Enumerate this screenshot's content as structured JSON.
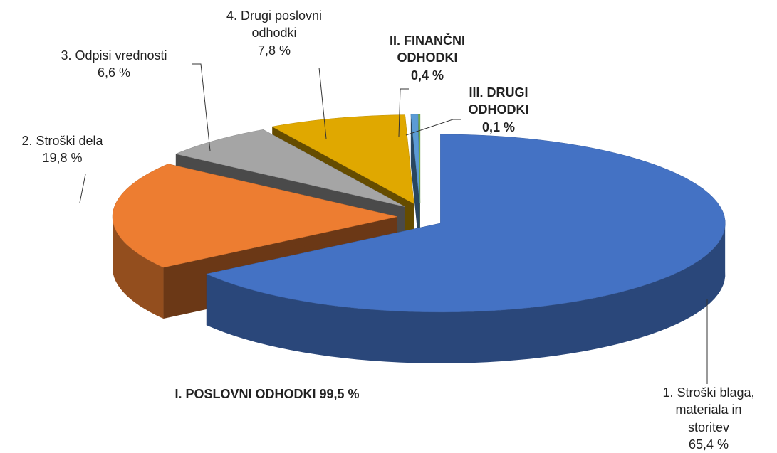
{
  "chart_data": {
    "type": "pie",
    "categories": [
      "1. Stroški blaga, materiala in storitev",
      "2. Stroški dela",
      "3. Odpisi vrednosti",
      "4. Drugi poslovni odhodki",
      "II. FINANČNI ODHODKI",
      "III. DRUGI ODHODKI"
    ],
    "values": [
      65.4,
      19.8,
      6.6,
      7.8,
      0.4,
      0.1
    ],
    "value_labels": [
      "65,4 %",
      "19,8 %",
      "6,6 %",
      "7,8 %",
      "0,4 %",
      "0,1 %"
    ],
    "colors": [
      "#4472c4",
      "#ed7d31",
      "#a5a5a5",
      "#e0a800",
      "#5b9bd5",
      "#70ad47"
    ],
    "annotation": "I. POSLOVNI ODHODKI 99,5 %"
  }
}
